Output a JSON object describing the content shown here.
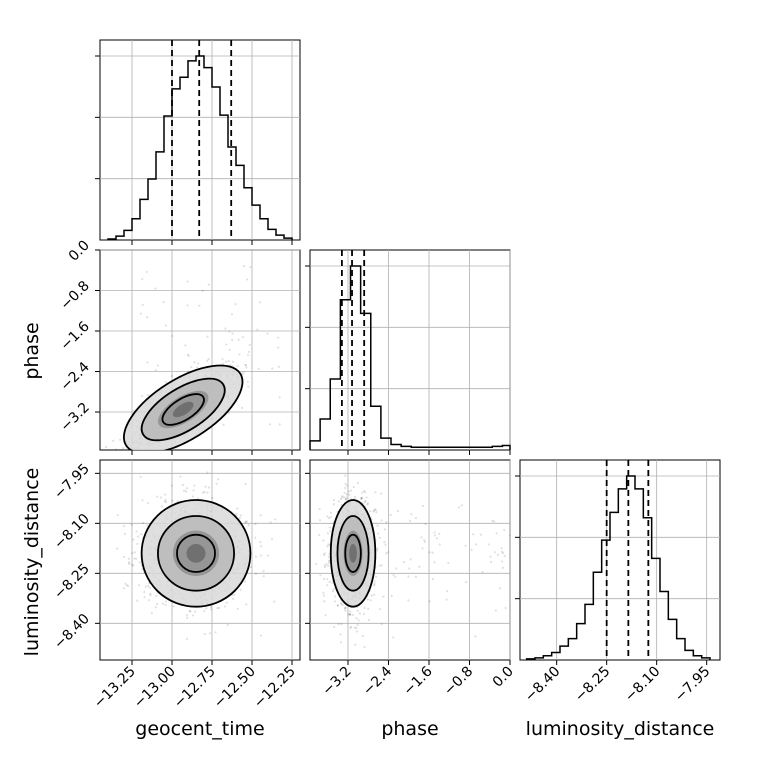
{
  "chart_data": {
    "type": "corner",
    "parameters": [
      "geocent_time",
      "phase",
      "luminosity_distance"
    ],
    "axis_labels": {
      "geocent_time": "geocent_time",
      "phase": "phase",
      "luminosity_distance": "luminosity_distance"
    },
    "ranges": {
      "geocent_time": [
        -13.45,
        -12.2
      ],
      "phase": [
        -3.95,
        0.0
      ],
      "luminosity_distance": [
        -8.51,
        -7.91
      ]
    },
    "ticks": {
      "geocent_time": [
        {
          "v": -13.25,
          "label": "−13.25"
        },
        {
          "v": -13.0,
          "label": "−13.00"
        },
        {
          "v": -12.75,
          "label": "−12.75"
        },
        {
          "v": -12.5,
          "label": "−12.50"
        },
        {
          "v": -12.25,
          "label": "−12.25"
        }
      ],
      "phase": [
        {
          "v": -3.2,
          "label": "−3.2"
        },
        {
          "v": -2.4,
          "label": "−2.4"
        },
        {
          "v": -1.6,
          "label": "−1.6"
        },
        {
          "v": -0.8,
          "label": "−0.8"
        },
        {
          "v": 0.0,
          "label": "0.0"
        }
      ],
      "luminosity_distance": [
        {
          "v": -8.4,
          "label": "−8.40"
        },
        {
          "v": -8.25,
          "label": "−8.25"
        },
        {
          "v": -8.1,
          "label": "−8.10"
        },
        {
          "v": -7.95,
          "label": "−7.95"
        }
      ]
    },
    "marginals": {
      "geocent_time": {
        "quantiles": [
          -13.0,
          -12.83,
          -12.63
        ],
        "bin_edges": [
          -13.4,
          -13.35,
          -13.3,
          -13.25,
          -13.2,
          -13.15,
          -13.1,
          -13.05,
          -13.0,
          -12.95,
          -12.9,
          -12.85,
          -12.8,
          -12.75,
          -12.7,
          -12.65,
          -12.6,
          -12.55,
          -12.5,
          -12.45,
          -12.4,
          -12.35,
          -12.3,
          -12.25
        ],
        "counts": [
          1,
          4,
          10,
          22,
          42,
          63,
          91,
          128,
          156,
          168,
          185,
          190,
          178,
          158,
          129,
          96,
          77,
          54,
          36,
          22,
          11,
          5,
          2
        ]
      },
      "phase": {
        "quantiles": [
          -3.32,
          -3.12,
          -2.88
        ],
        "bin_edges": [
          -3.95,
          -3.75,
          -3.55,
          -3.35,
          -3.15,
          -2.95,
          -2.75,
          -2.55,
          -2.35,
          -2.15,
          -1.95,
          -1.75,
          -1.55,
          -1.35,
          -1.15,
          -0.95,
          -0.75,
          -0.55,
          -0.35,
          -0.15,
          0.0
        ],
        "counts": [
          10,
          34,
          78,
          165,
          202,
          150,
          48,
          13,
          6,
          4,
          3,
          3,
          3,
          3,
          3,
          3,
          3,
          3,
          4,
          5
        ]
      },
      "luminosity_distance": {
        "quantiles": [
          -8.25,
          -8.185,
          -8.125
        ],
        "bin_edges": [
          -8.49,
          -8.465,
          -8.44,
          -8.415,
          -8.39,
          -8.365,
          -8.34,
          -8.315,
          -8.29,
          -8.265,
          -8.24,
          -8.215,
          -8.19,
          -8.165,
          -8.14,
          -8.115,
          -8.09,
          -8.065,
          -8.04,
          -8.015,
          -7.99,
          -7.965,
          -7.94
        ],
        "counts": [
          1,
          2,
          4,
          7,
          13,
          20,
          34,
          52,
          82,
          112,
          138,
          160,
          172,
          160,
          133,
          95,
          64,
          38,
          20,
          9,
          4,
          2
        ]
      }
    },
    "joint": {
      "phase|geocent_time": {
        "mean": [
          -12.93,
          -3.15
        ],
        "std": [
          0.17,
          0.45
        ],
        "correlation": 0.8,
        "shape": "elongated ellipse tilted upward to the right"
      },
      "luminosity_distance|geocent_time": {
        "mean": [
          -12.85,
          -8.19
        ],
        "std": [
          0.17,
          0.08
        ],
        "correlation": 0.0,
        "shape": "round blob"
      },
      "luminosity_distance|phase": {
        "mean": [
          -3.1,
          -8.19
        ],
        "std": [
          0.22,
          0.08
        ],
        "correlation": 0.0,
        "shape": "vertically elongated blob with sparse tail toward 0.0"
      }
    },
    "contour_levels": 3,
    "grid": true
  }
}
